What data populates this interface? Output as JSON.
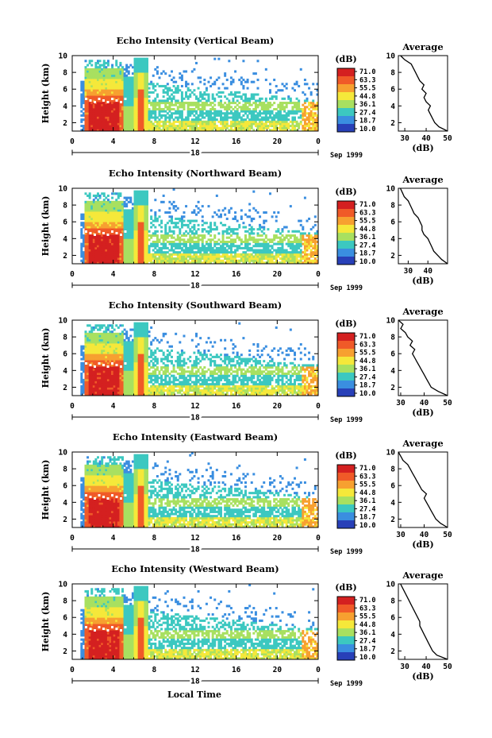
{
  "x_axis_label": "Local Time",
  "colorbar_unit": "(dB)",
  "colorbar_levels": [
    "71.0",
    "63.3",
    "55.5",
    "44.8",
    "36.1",
    "27.4",
    "18.7",
    "10.0"
  ],
  "colorbar_colors": [
    "#d42020",
    "#f05a28",
    "#f7a030",
    "#f5e83a",
    "#a8e060",
    "#3cc8c0",
    "#3a8ee0",
    "#2840b8"
  ],
  "date_label": "Sep 1999",
  "line_color": "#000000",
  "chart_data": [
    {
      "type": "heatmap",
      "title": "Echo Intensity (Vertical Beam)",
      "ylabel": "Height (km)",
      "xlabel": "",
      "xticks": [
        "0",
        "4",
        "8",
        "12",
        "16",
        "20",
        "0"
      ],
      "yticks": [
        "2",
        "4",
        "6",
        "8",
        "10"
      ],
      "day_label": "18",
      "date_label": "Sep 1999",
      "xlim": [
        0,
        24
      ],
      "ylim": [
        1,
        10
      ],
      "profile": {
        "title": "Average",
        "xlabel": "(dB)",
        "xticks": [
          "30",
          "40",
          "50"
        ],
        "yticks": [
          "2",
          "4",
          "6",
          "8",
          "10"
        ],
        "xlim": [
          27,
          50
        ],
        "height_km": [
          1.0,
          1.5,
          2.0,
          2.5,
          3.0,
          3.5,
          4.0,
          4.5,
          5.0,
          5.5,
          6.0,
          6.5,
          7.0,
          7.5,
          8.0,
          8.5,
          9.0,
          9.5,
          10.0
        ],
        "values_db": [
          50,
          46,
          44,
          43,
          42,
          41,
          42,
          40,
          39,
          40,
          38,
          39,
          37,
          36,
          35,
          34,
          33,
          30,
          28
        ]
      }
    },
    {
      "type": "heatmap",
      "title": "Echo Intensity (Northward Beam)",
      "ylabel": "Height (km)",
      "xlabel": "",
      "xticks": [
        "0",
        "4",
        "8",
        "12",
        "16",
        "20",
        "0"
      ],
      "yticks": [
        "2",
        "4",
        "6",
        "8",
        "10"
      ],
      "day_label": "18",
      "date_label": "Sep 1999",
      "xlim": [
        0,
        24
      ],
      "ylim": [
        1,
        10
      ],
      "profile": {
        "title": "Average",
        "xlabel": "(dB)",
        "xticks": [
          "30",
          "40"
        ],
        "yticks": [
          "2",
          "4",
          "6",
          "8",
          "10"
        ],
        "xlim": [
          25,
          50
        ],
        "height_km": [
          1.0,
          1.5,
          2.0,
          2.5,
          3.0,
          3.5,
          4.0,
          4.5,
          5.0,
          5.5,
          6.0,
          6.5,
          7.0,
          7.5,
          8.0,
          8.5,
          9.0,
          9.5,
          10.0
        ],
        "values_db": [
          50,
          47,
          45,
          43,
          42,
          41,
          40,
          38,
          37,
          37,
          36,
          35,
          33,
          32,
          31,
          30,
          28,
          27,
          26
        ]
      }
    },
    {
      "type": "heatmap",
      "title": "Echo Intensity (Southward Beam)",
      "ylabel": "Height (km)",
      "xlabel": "",
      "xticks": [
        "0",
        "4",
        "8",
        "12",
        "16",
        "20",
        "0"
      ],
      "yticks": [
        "2",
        "4",
        "6",
        "8",
        "10"
      ],
      "day_label": "18",
      "date_label": "Sep 1999",
      "xlim": [
        0,
        24
      ],
      "ylim": [
        1,
        10
      ],
      "profile": {
        "title": "Average",
        "xlabel": "(dB)",
        "xticks": [
          "30",
          "40",
          "50"
        ],
        "yticks": [
          "2",
          "4",
          "6",
          "8",
          "10"
        ],
        "xlim": [
          29,
          50
        ],
        "height_km": [
          1.0,
          1.5,
          2.0,
          2.5,
          3.0,
          3.5,
          4.0,
          4.5,
          5.0,
          5.5,
          6.0,
          6.5,
          7.0,
          7.5,
          8.0,
          8.5,
          9.0,
          9.5,
          10.0
        ],
        "values_db": [
          50,
          46,
          43,
          42,
          41,
          40,
          39,
          38,
          37,
          36,
          35,
          36,
          34,
          35,
          33,
          32,
          30,
          31,
          29
        ]
      }
    },
    {
      "type": "heatmap",
      "title": "Echo Intensity (Eastward Beam)",
      "ylabel": "Height (km)",
      "xlabel": "",
      "xticks": [
        "0",
        "4",
        "8",
        "12",
        "16",
        "20",
        "0"
      ],
      "yticks": [
        "2",
        "4",
        "6",
        "8",
        "10"
      ],
      "day_label": "18",
      "date_label": "Sep 1999",
      "xlim": [
        0,
        24
      ],
      "ylim": [
        1,
        10
      ],
      "profile": {
        "title": "Average",
        "xlabel": "(dB)",
        "xticks": [
          "30",
          "40",
          "50"
        ],
        "yticks": [
          "2",
          "4",
          "6",
          "8",
          "10"
        ],
        "xlim": [
          29,
          50
        ],
        "height_km": [
          1.0,
          1.5,
          2.0,
          2.5,
          3.0,
          3.5,
          4.0,
          4.5,
          5.0,
          5.5,
          6.0,
          6.5,
          7.0,
          7.5,
          8.0,
          8.5,
          9.0,
          9.5,
          10.0
        ],
        "values_db": [
          50,
          47,
          45,
          44,
          43,
          42,
          41,
          40,
          41,
          39,
          38,
          37,
          36,
          35,
          34,
          33,
          31,
          30,
          29
        ]
      }
    },
    {
      "type": "heatmap",
      "title": "Echo Intensity (Westward Beam)",
      "ylabel": "Height (km)",
      "xlabel": "",
      "xticks": [
        "0",
        "4",
        "8",
        "12",
        "16",
        "20",
        "0"
      ],
      "yticks": [
        "2",
        "4",
        "6",
        "8",
        "10"
      ],
      "day_label": "18",
      "date_label": "Sep 1999",
      "xlim": [
        0,
        24
      ],
      "ylim": [
        1,
        10
      ],
      "profile": {
        "title": "Average",
        "xlabel": "(dB)",
        "xticks": [
          "30",
          "40",
          "50"
        ],
        "yticks": [
          "2",
          "4",
          "6",
          "8",
          "10"
        ],
        "xlim": [
          27,
          50
        ],
        "height_km": [
          1.0,
          1.5,
          2.0,
          2.5,
          3.0,
          3.5,
          4.0,
          4.5,
          5.0,
          5.5,
          6.0,
          6.5,
          7.0,
          7.5,
          8.0,
          8.5,
          9.0,
          9.5,
          10.0
        ],
        "values_db": [
          50,
          45,
          43,
          42,
          41,
          40,
          39,
          38,
          37,
          37,
          36,
          35,
          34,
          33,
          32,
          31,
          30,
          29,
          28
        ]
      }
    }
  ]
}
